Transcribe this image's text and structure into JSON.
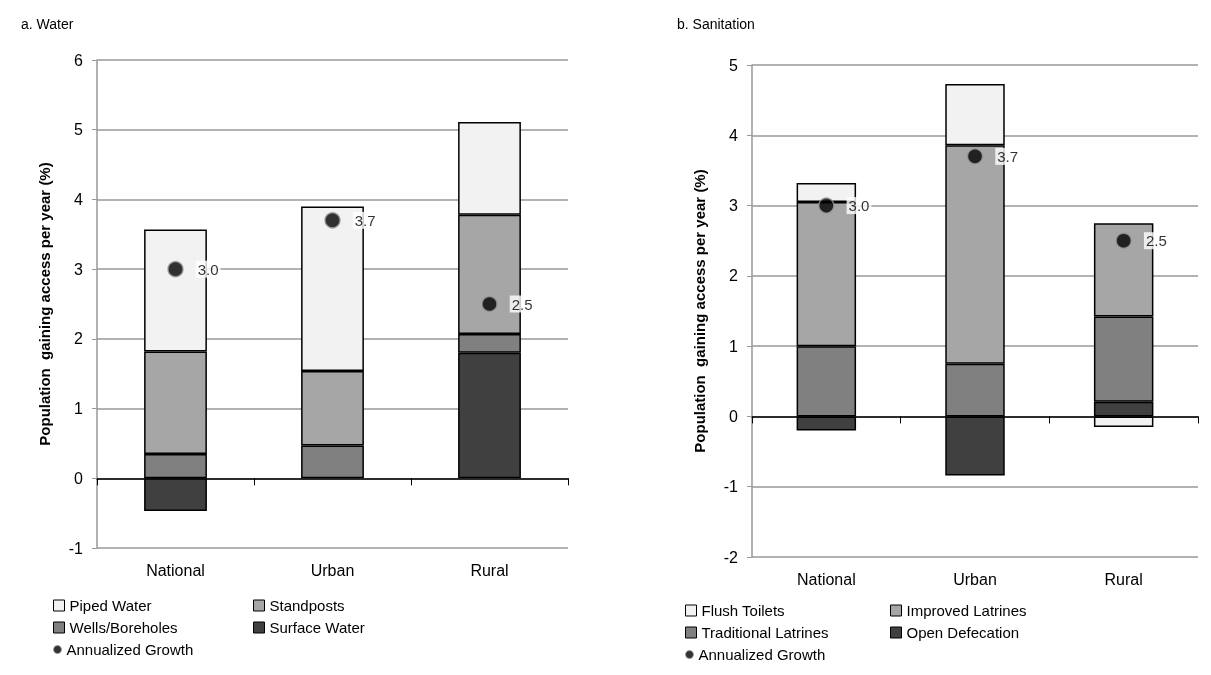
{
  "chart_data": [
    {
      "type": "bar",
      "title": "a. Water",
      "ylabel": "Population  gaining access per year (%)",
      "categories": [
        "National",
        "Urban",
        "Rural"
      ],
      "stacked": true,
      "ylim": [
        -1,
        6
      ],
      "yticks": [
        -1,
        0,
        1,
        2,
        3,
        4,
        5,
        6
      ],
      "grid": "y",
      "legend": "bottom",
      "series": [
        {
          "name": "Surface Water",
          "color": "#404040",
          "values": [
            -0.47,
            0,
            1.8
          ]
        },
        {
          "name": "Wells/Boreholes",
          "color": "#808080",
          "values": [
            0.35,
            0.47,
            0.27
          ]
        },
        {
          "name": "Standposts",
          "color": "#a6a6a6",
          "values": [
            1.47,
            1.07,
            1.71
          ]
        },
        {
          "name": "Piped Water",
          "color": "#f2f2f2",
          "values": [
            1.75,
            2.36,
            1.33
          ]
        },
        {
          "name": "Annualized Growth",
          "type": "scatter",
          "marker": "circle",
          "color": "#000000",
          "values": [
            3.0,
            3.7,
            2.5
          ],
          "value_labels": [
            "3.0",
            "3.7",
            "2.5"
          ]
        }
      ]
    },
    {
      "type": "bar",
      "title": "b. Sanitation",
      "ylabel": "Population  gaining access per year (%)",
      "categories": [
        "National",
        "Urban",
        "Rural"
      ],
      "stacked": true,
      "ylim": [
        -2,
        5
      ],
      "yticks": [
        -2,
        -1,
        0,
        1,
        2,
        3,
        4,
        5
      ],
      "grid": "y",
      "legend": "bottom",
      "series": [
        {
          "name": "Open Defecation",
          "color": "#404040",
          "values": [
            -0.2,
            -0.84,
            0.21
          ]
        },
        {
          "name": "Traditional Latrines",
          "color": "#808080",
          "values": [
            1.0,
            0.75,
            1.21
          ]
        },
        {
          "name": "Improved Latrines",
          "color": "#a6a6a6",
          "values": [
            2.05,
            3.11,
            1.33
          ]
        },
        {
          "name": "Flush Toilets",
          "color": "#f2f2f2",
          "values": [
            0.27,
            0.87,
            -0.15
          ]
        },
        {
          "name": "Annualized Growth",
          "type": "scatter",
          "marker": "circle",
          "color": "#000000",
          "values": [
            3.0,
            3.7,
            2.5
          ],
          "value_labels": [
            "3.0",
            "3.7",
            "2.5"
          ]
        }
      ]
    }
  ]
}
